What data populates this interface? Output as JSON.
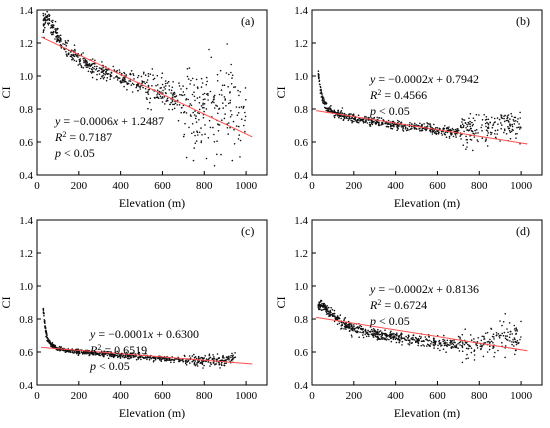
{
  "chart_data": [
    {
      "type": "scatter",
      "panel_label": "(a)",
      "xlabel": "Elevation (m)",
      "ylabel": "CI",
      "xlim": [
        0,
        1100
      ],
      "ylim": [
        0.4,
        1.4
      ],
      "xticks": [
        "0",
        "200",
        "400",
        "600",
        "800",
        "1000"
      ],
      "yticks": [
        "0.4",
        "0.6",
        "0.8",
        "1.0",
        "1.2",
        "1.4"
      ],
      "fit": {
        "slope": -0.0006,
        "intercept": 1.2487,
        "color": "#ff4d4d"
      },
      "annotation": {
        "eq_prefix": "y",
        "eq_rest": " = −0.0006",
        "eq_x": "x",
        "eq_const": " + 1.2487",
        "r2_label": "R",
        "r2_value": " = 0.7187",
        "p_label": "p",
        "p_value": " < 0.05"
      },
      "series_points": [
        [
          30,
          1.31
        ],
        [
          40,
          1.34
        ],
        [
          50,
          1.35
        ],
        [
          60,
          1.33
        ],
        [
          80,
          1.27
        ],
        [
          100,
          1.23
        ],
        [
          130,
          1.18
        ],
        [
          160,
          1.14
        ],
        [
          200,
          1.1
        ],
        [
          250,
          1.06
        ],
        [
          300,
          1.03
        ],
        [
          350,
          1.01
        ],
        [
          400,
          0.99
        ],
        [
          450,
          0.97
        ],
        [
          500,
          0.95
        ],
        [
          550,
          0.94
        ],
        [
          600,
          0.92
        ],
        [
          650,
          0.87
        ],
        [
          700,
          0.83
        ],
        [
          750,
          0.8
        ],
        [
          800,
          0.8
        ],
        [
          850,
          0.8
        ],
        [
          900,
          0.82
        ],
        [
          950,
          0.82
        ],
        [
          1000,
          0.78
        ]
      ]
    },
    {
      "type": "scatter",
      "panel_label": "(b)",
      "xlabel": "Elevation (m)",
      "ylabel": "CI",
      "xlim": [
        0,
        1100
      ],
      "ylim": [
        0.4,
        1.4
      ],
      "xticks": [
        "0",
        "200",
        "400",
        "600",
        "800",
        "1000"
      ],
      "yticks": [
        "0.4",
        "0.6",
        "0.8",
        "1.0",
        "1.2",
        "1.4"
      ],
      "fit": {
        "slope": -0.0002,
        "intercept": 0.7942,
        "color": "#ff4d4d"
      },
      "annotation": {
        "eq_prefix": "y",
        "eq_rest": " = −0.0002",
        "eq_x": "x",
        "eq_const": " + 0.7942",
        "r2_label": "R",
        "r2_value": " = 0.4566",
        "p_label": "p",
        "p_value": " < 0.05"
      },
      "series_points": [
        [
          30,
          1.02
        ],
        [
          40,
          0.93
        ],
        [
          50,
          0.86
        ],
        [
          70,
          0.81
        ],
        [
          100,
          0.78
        ],
        [
          150,
          0.76
        ],
        [
          200,
          0.74
        ],
        [
          300,
          0.72
        ],
        [
          400,
          0.7
        ],
        [
          500,
          0.69
        ],
        [
          600,
          0.67
        ],
        [
          700,
          0.66
        ],
        [
          800,
          0.67
        ],
        [
          850,
          0.7
        ],
        [
          900,
          0.7
        ],
        [
          950,
          0.71
        ],
        [
          1000,
          0.68
        ]
      ]
    },
    {
      "type": "scatter",
      "panel_label": "(c)",
      "xlabel": "Elevation (m)",
      "ylabel": "CI",
      "xlim": [
        0,
        1100
      ],
      "ylim": [
        0.4,
        1.4
      ],
      "xticks": [
        "0",
        "200",
        "400",
        "600",
        "800",
        "1000"
      ],
      "yticks": [
        "0.4",
        "0.6",
        "0.8",
        "1.0",
        "1.2",
        "1.4"
      ],
      "fit": {
        "slope": -0.0001,
        "intercept": 0.63,
        "color": "#ff4d4d"
      },
      "annotation": {
        "eq_prefix": "y",
        "eq_rest": " = −0.0001",
        "eq_x": "x",
        "eq_const": " + 0.6300",
        "r2_label": "R",
        "r2_value": " = 0.6519",
        "p_label": "p",
        "p_value": " < 0.05"
      },
      "series_points": [
        [
          30,
          0.86
        ],
        [
          40,
          0.74
        ],
        [
          50,
          0.68
        ],
        [
          70,
          0.64
        ],
        [
          100,
          0.62
        ],
        [
          150,
          0.61
        ],
        [
          200,
          0.6
        ],
        [
          300,
          0.59
        ],
        [
          400,
          0.58
        ],
        [
          500,
          0.57
        ],
        [
          600,
          0.56
        ],
        [
          700,
          0.55
        ],
        [
          800,
          0.54
        ],
        [
          850,
          0.54
        ],
        [
          900,
          0.55
        ],
        [
          950,
          0.56
        ]
      ]
    },
    {
      "type": "scatter",
      "panel_label": "(d)",
      "xlabel": "Elevation (m)",
      "ylabel": "CI",
      "xlim": [
        0,
        1100
      ],
      "ylim": [
        0.4,
        1.4
      ],
      "xticks": [
        "0",
        "200",
        "400",
        "600",
        "800",
        "1000"
      ],
      "yticks": [
        "0.4",
        "0.6",
        "0.8",
        "1.0",
        "1.2",
        "1.4"
      ],
      "fit": {
        "slope": -0.0002,
        "intercept": 0.8136,
        "color": "#ff4d4d"
      },
      "annotation": {
        "eq_prefix": "y",
        "eq_rest": " = −0.0002",
        "eq_x": "x",
        "eq_const": " + 0.8136",
        "r2_label": "R",
        "r2_value": " = 0.6724",
        "p_label": "p",
        "p_value": " < 0.05"
      },
      "series_points": [
        [
          30,
          0.89
        ],
        [
          50,
          0.88
        ],
        [
          70,
          0.86
        ],
        [
          90,
          0.84
        ],
        [
          120,
          0.8
        ],
        [
          150,
          0.77
        ],
        [
          200,
          0.74
        ],
        [
          300,
          0.71
        ],
        [
          400,
          0.69
        ],
        [
          500,
          0.67
        ],
        [
          600,
          0.66
        ],
        [
          700,
          0.64
        ],
        [
          800,
          0.65
        ],
        [
          850,
          0.67
        ],
        [
          900,
          0.7
        ],
        [
          950,
          0.7
        ],
        [
          1000,
          0.68
        ]
      ]
    }
  ]
}
